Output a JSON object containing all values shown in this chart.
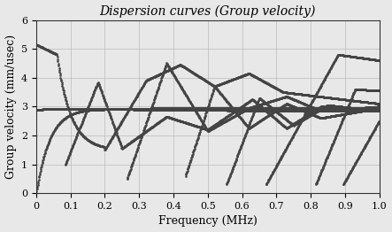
{
  "title": "Dispersion curves (Group velocity)",
  "xlabel": "Frequency (MHz)",
  "ylabel": "Group velocity (mm/usec)",
  "xlim": [
    0,
    1.0
  ],
  "ylim": [
    0,
    6
  ],
  "xticks": [
    0,
    0.1,
    0.2,
    0.3,
    0.4,
    0.5,
    0.6,
    0.7,
    0.8,
    0.9,
    1.0
  ],
  "yticks": [
    0,
    1,
    2,
    3,
    4,
    5,
    6
  ],
  "curve_color": "#444444",
  "dot_size": 1.8,
  "title_fontsize": 10,
  "axis_fontsize": 9,
  "tick_fontsize": 8
}
